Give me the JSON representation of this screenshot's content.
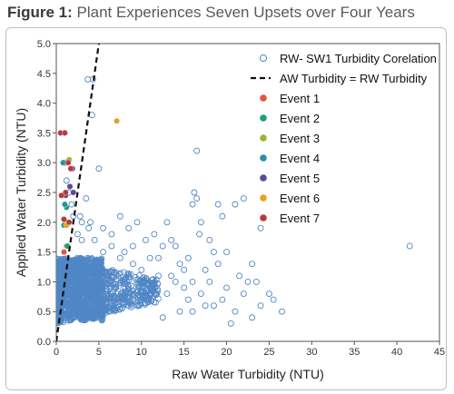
{
  "figure": {
    "label": "Figure 1:",
    "title": "Plant Experiences Seven Upsets over Four Years"
  },
  "chart_data": {
    "type": "scatter",
    "xlabel": "Raw Water Turbidity (NTU)",
    "ylabel": "Applied Water Turbidity (NTU)",
    "xlim": [
      0,
      45
    ],
    "ylim": [
      0,
      5.0
    ],
    "x_ticks": [
      "0",
      "5",
      "10",
      "15",
      "20",
      "25",
      "30",
      "35",
      "40",
      "45"
    ],
    "y_ticks": [
      "0.0",
      "0.5",
      "1.0",
      "1.5",
      "2.0",
      "2.5",
      "3.0",
      "3.5",
      "4.0",
      "4.5",
      "5.0"
    ],
    "grid": false,
    "legend_position": "top-right",
    "reference_line": {
      "name": "AW Turbidity = RW Turbidity",
      "slope": 1,
      "style": "dashed",
      "color": "#111111"
    },
    "series": [
      {
        "name": "RW- SW1 Turbidity Corelation",
        "marker": "open-circle",
        "color": "#4f86c6",
        "points": [
          [
            3.7,
            4.4
          ],
          [
            4.3,
            4.4
          ],
          [
            4.2,
            3.8
          ],
          [
            5.0,
            2.9
          ],
          [
            3.5,
            2.4
          ],
          [
            3.0,
            1.7
          ],
          [
            2.5,
            1.8
          ],
          [
            2.0,
            2.1
          ],
          [
            1.8,
            2.3
          ],
          [
            1.5,
            2.5
          ],
          [
            1.2,
            2.7
          ],
          [
            1.0,
            3.0
          ],
          [
            3.0,
            2.0
          ],
          [
            4.0,
            2.0
          ],
          [
            5.5,
            1.9
          ],
          [
            6.5,
            1.8
          ],
          [
            7.5,
            2.1
          ],
          [
            8.5,
            1.9
          ],
          [
            9.5,
            2.0
          ],
          [
            10.5,
            1.7
          ],
          [
            11.5,
            1.8
          ],
          [
            12.0,
            1.4
          ],
          [
            13.0,
            2.0
          ],
          [
            13.5,
            1.7
          ],
          [
            14.0,
            1.6
          ],
          [
            14.5,
            1.3
          ],
          [
            15.0,
            1.2
          ],
          [
            15.5,
            1.4
          ],
          [
            16.0,
            2.3
          ],
          [
            16.2,
            2.5
          ],
          [
            16.5,
            2.4
          ],
          [
            16.8,
            1.8
          ],
          [
            17.0,
            2.0
          ],
          [
            17.5,
            1.2
          ],
          [
            18.0,
            1.7
          ],
          [
            18.5,
            1.5
          ],
          [
            19.0,
            1.3
          ],
          [
            19.5,
            2.1
          ],
          [
            20.0,
            0.9
          ],
          [
            21.0,
            2.3
          ],
          [
            21.5,
            1.1
          ],
          [
            22.0,
            0.8
          ],
          [
            22.5,
            1.0
          ],
          [
            23.0,
            1.3
          ],
          [
            23.5,
            1.0
          ],
          [
            24.0,
            0.6
          ],
          [
            25.0,
            0.8
          ],
          [
            25.5,
            0.7
          ],
          [
            26.5,
            0.5
          ],
          [
            20.0,
            1.5
          ],
          [
            18.0,
            1.0
          ],
          [
            17.0,
            0.8
          ],
          [
            16.0,
            1.0
          ],
          [
            15.0,
            0.9
          ],
          [
            14.0,
            1.0
          ],
          [
            13.0,
            0.8
          ],
          [
            12.0,
            1.1
          ],
          [
            11.0,
            0.9
          ],
          [
            10.0,
            1.2
          ],
          [
            9.0,
            1.3
          ],
          [
            8.0,
            1.0
          ],
          [
            7.0,
            0.9
          ],
          [
            6.0,
            1.1
          ],
          [
            5.0,
            1.2
          ],
          [
            16.5,
            3.2
          ],
          [
            19.0,
            2.3
          ],
          [
            22.0,
            2.4
          ],
          [
            41.5,
            1.6
          ],
          [
            20.5,
            0.3
          ],
          [
            11.0,
            1.4
          ],
          [
            12.5,
            1.6
          ],
          [
            13.5,
            1.1
          ],
          [
            9.0,
            1.6
          ],
          [
            8.0,
            1.5
          ],
          [
            7.5,
            1.4
          ],
          [
            6.5,
            1.6
          ],
          [
            5.5,
            1.5
          ],
          [
            4.5,
            1.7
          ],
          [
            3.8,
            1.9
          ],
          [
            2.8,
            2.1
          ],
          [
            24.0,
            1.9
          ],
          [
            18.5,
            0.6
          ],
          [
            21.0,
            0.5
          ],
          [
            15.5,
            0.7
          ],
          [
            17.5,
            0.6
          ],
          [
            19.5,
            0.7
          ],
          [
            23.0,
            0.4
          ],
          [
            16.0,
            0.5
          ],
          [
            14.5,
            0.5
          ],
          [
            12.5,
            0.4
          ]
        ],
        "dense_cluster": {
          "x_range": [
            0,
            12
          ],
          "y_range": [
            0.3,
            1.4
          ]
        }
      },
      {
        "name": "Event 1",
        "marker": "filled-circle",
        "color": "#e8533a",
        "points": [
          [
            0.9,
            1.5
          ],
          [
            1.2,
            1.6
          ]
        ]
      },
      {
        "name": "Event 2",
        "marker": "filled-circle",
        "color": "#1aa36a",
        "points": [
          [
            1.3,
            1.6
          ],
          [
            0.9,
            1.95
          ],
          [
            1.2,
            2.25
          ]
        ]
      },
      {
        "name": "Event 3",
        "marker": "filled-circle",
        "color": "#a6b030",
        "points": [
          [
            1.5,
            3.05
          ],
          [
            1.3,
            2.0
          ]
        ]
      },
      {
        "name": "Event 4",
        "marker": "filled-circle",
        "color": "#2b8fa6",
        "points": [
          [
            0.8,
            3.0
          ],
          [
            1.0,
            2.3
          ]
        ]
      },
      {
        "name": "Event 5",
        "marker": "filled-circle",
        "color": "#5b4a9a",
        "points": [
          [
            1.9,
            2.9
          ],
          [
            2.0,
            2.5
          ],
          [
            1.6,
            2.6
          ],
          [
            1.1,
            2.45
          ]
        ]
      },
      {
        "name": "Event 6",
        "marker": "filled-circle",
        "color": "#e6a21e",
        "points": [
          [
            7.1,
            3.7
          ],
          [
            1.2,
            1.95
          ]
        ]
      },
      {
        "name": "Event 7",
        "marker": "filled-circle",
        "color": "#b83a3a",
        "points": [
          [
            0.5,
            3.5
          ],
          [
            1.0,
            3.5
          ],
          [
            1.4,
            3.0
          ],
          [
            1.7,
            2.9
          ],
          [
            1.1,
            2.5
          ],
          [
            0.6,
            2.45
          ],
          [
            0.9,
            2.05
          ],
          [
            1.5,
            2.0
          ]
        ]
      }
    ]
  }
}
